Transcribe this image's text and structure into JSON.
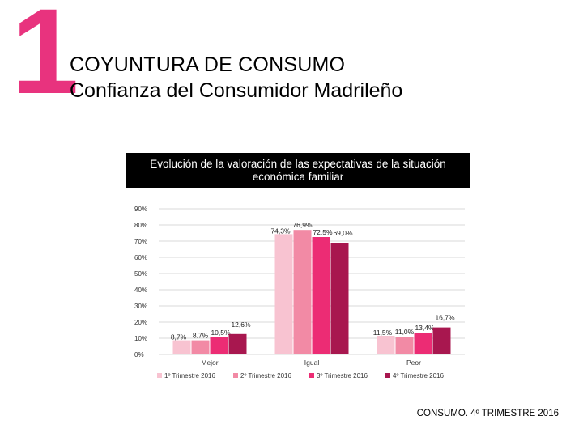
{
  "slide": {
    "number": "1",
    "title": "COYUNTURA DE CONSUMO",
    "subtitle": "Confianza del Consumidor Madrileño",
    "footer": "CONSUMO. 4º TRIMESTRE 2016"
  },
  "chart_data": {
    "type": "bar",
    "title": "Evolución de la valoración de las expectativas de la situación económica familiar",
    "categories": [
      "Mejor",
      "Igual",
      "Peor"
    ],
    "series": [
      {
        "name": "1º Trimestre 2016",
        "values": [
          8.7,
          74.3,
          11.5
        ],
        "labels": [
          "8,7%",
          "74,3%",
          "11,5%"
        ],
        "color": "#f8c3d1"
      },
      {
        "name": "2º Trimestre 2016",
        "values": [
          8.7,
          76.9,
          11.0
        ],
        "labels": [
          "8.7%",
          "76,9%",
          "11,0%"
        ],
        "color": "#f28aa5"
      },
      {
        "name": "3º Trimestre 2016",
        "values": [
          10.5,
          72.5,
          13.4
        ],
        "labels": [
          "10,5%",
          "72.5%",
          "13,4%"
        ],
        "color": "#ec2c74"
      },
      {
        "name": "4º Trimestre 2016",
        "values": [
          12.6,
          69.0,
          16.7
        ],
        "labels": [
          "12,6%",
          "69,0%",
          "16,7%"
        ],
        "color": "#a8174f"
      }
    ],
    "y_ticks": [
      "0%",
      "10%",
      "20%",
      "30%",
      "40%",
      "50%",
      "60%",
      "70%",
      "80%",
      "90%"
    ],
    "ylim": [
      0,
      90
    ],
    "grid": true,
    "legend": "bottom"
  }
}
